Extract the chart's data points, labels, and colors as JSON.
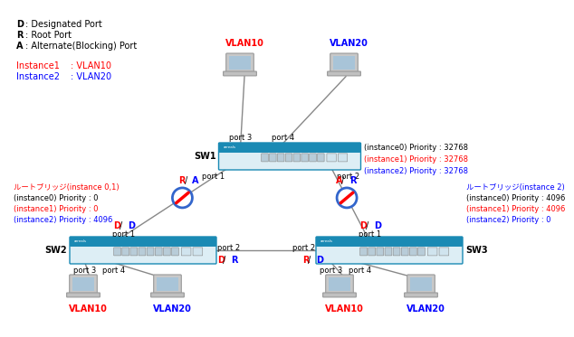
{
  "bg_color": "#ffffff",
  "red": "#ff0000",
  "blue": "#0000ff",
  "black": "#000000",
  "gray": "#666666",
  "sw_body_color": "#e8f4f8",
  "sw_top_color": "#1a8ab4",
  "sw_border_color": "#1a8ab4",
  "sw_port_color": "#c0d8e8",
  "sw1_priority": [
    {
      "text": "(instance0) Priority : 32768",
      "color": "#000000"
    },
    {
      "text": "(instance1) Priority : 32768",
      "color": "#ff0000"
    },
    {
      "text": "(instance2) Priority : 32768",
      "color": "#0000ff"
    }
  ],
  "sw2_priority": [
    {
      "text": "ルートブリッジ(instance 0,1)",
      "color": "#ff0000"
    },
    {
      "text": "(instance0) Priority : 0",
      "color": "#000000"
    },
    {
      "text": "(instance1) Priority : 0",
      "color": "#ff0000"
    },
    {
      "text": "(instance2) Priority : 4096",
      "color": "#0000ff"
    }
  ],
  "sw3_priority": [
    {
      "text": "ルートブリッジ(instance 2)",
      "color": "#0000ff"
    },
    {
      "text": "(instance0) Priority : 4096",
      "color": "#000000"
    },
    {
      "text": "(instance1) Priority : 4096",
      "color": "#ff0000"
    },
    {
      "text": "(instance2) Priority : 0",
      "color": "#0000ff"
    }
  ]
}
